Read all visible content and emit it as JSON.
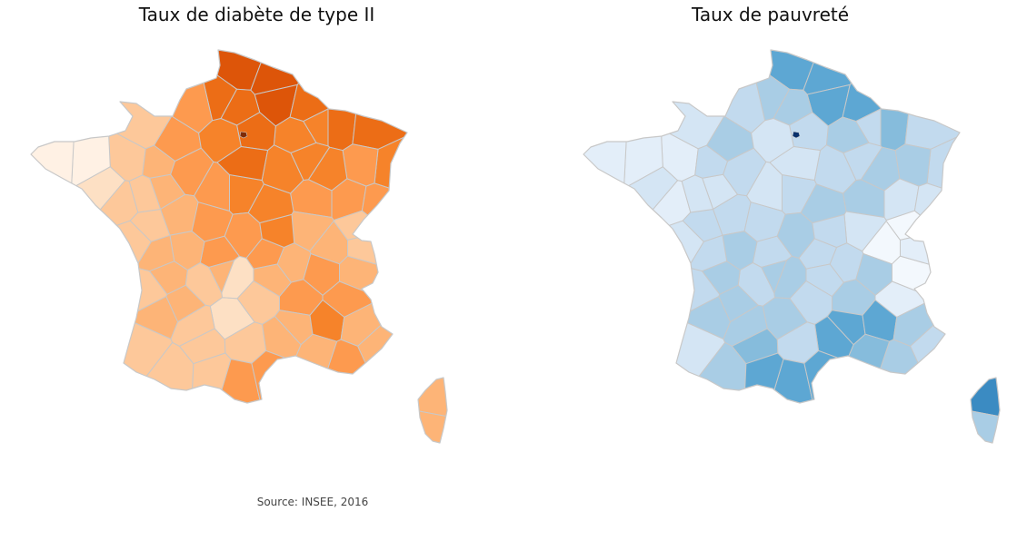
{
  "maps": [
    {
      "title": "Taux de diabète de type II",
      "colors": {
        "level_0": "#fff1e4",
        "level_1": "#fde0c4",
        "level_2": "#fdc89a",
        "level_3": "#fdb477",
        "level_4": "#fd9a4f",
        "level_5": "#f6832a",
        "level_6": "#ec6d16",
        "level_7": "#dd5509",
        "paris": "#7f2a04",
        "border": "#c8c8c8"
      }
    },
    {
      "title": "Taux de pauvreté",
      "colors": {
        "level_0": "#f3f8fd",
        "level_1": "#e3eef9",
        "level_2": "#d4e5f4",
        "level_3": "#c2daee",
        "level_4": "#a9cde5",
        "level_5": "#86bcdc",
        "level_6": "#5da7d3",
        "level_7": "#3b8bc2",
        "paris": "#08306b",
        "border": "#c8c8c8"
      }
    }
  ],
  "source": "Source: INSEE, 2016"
}
